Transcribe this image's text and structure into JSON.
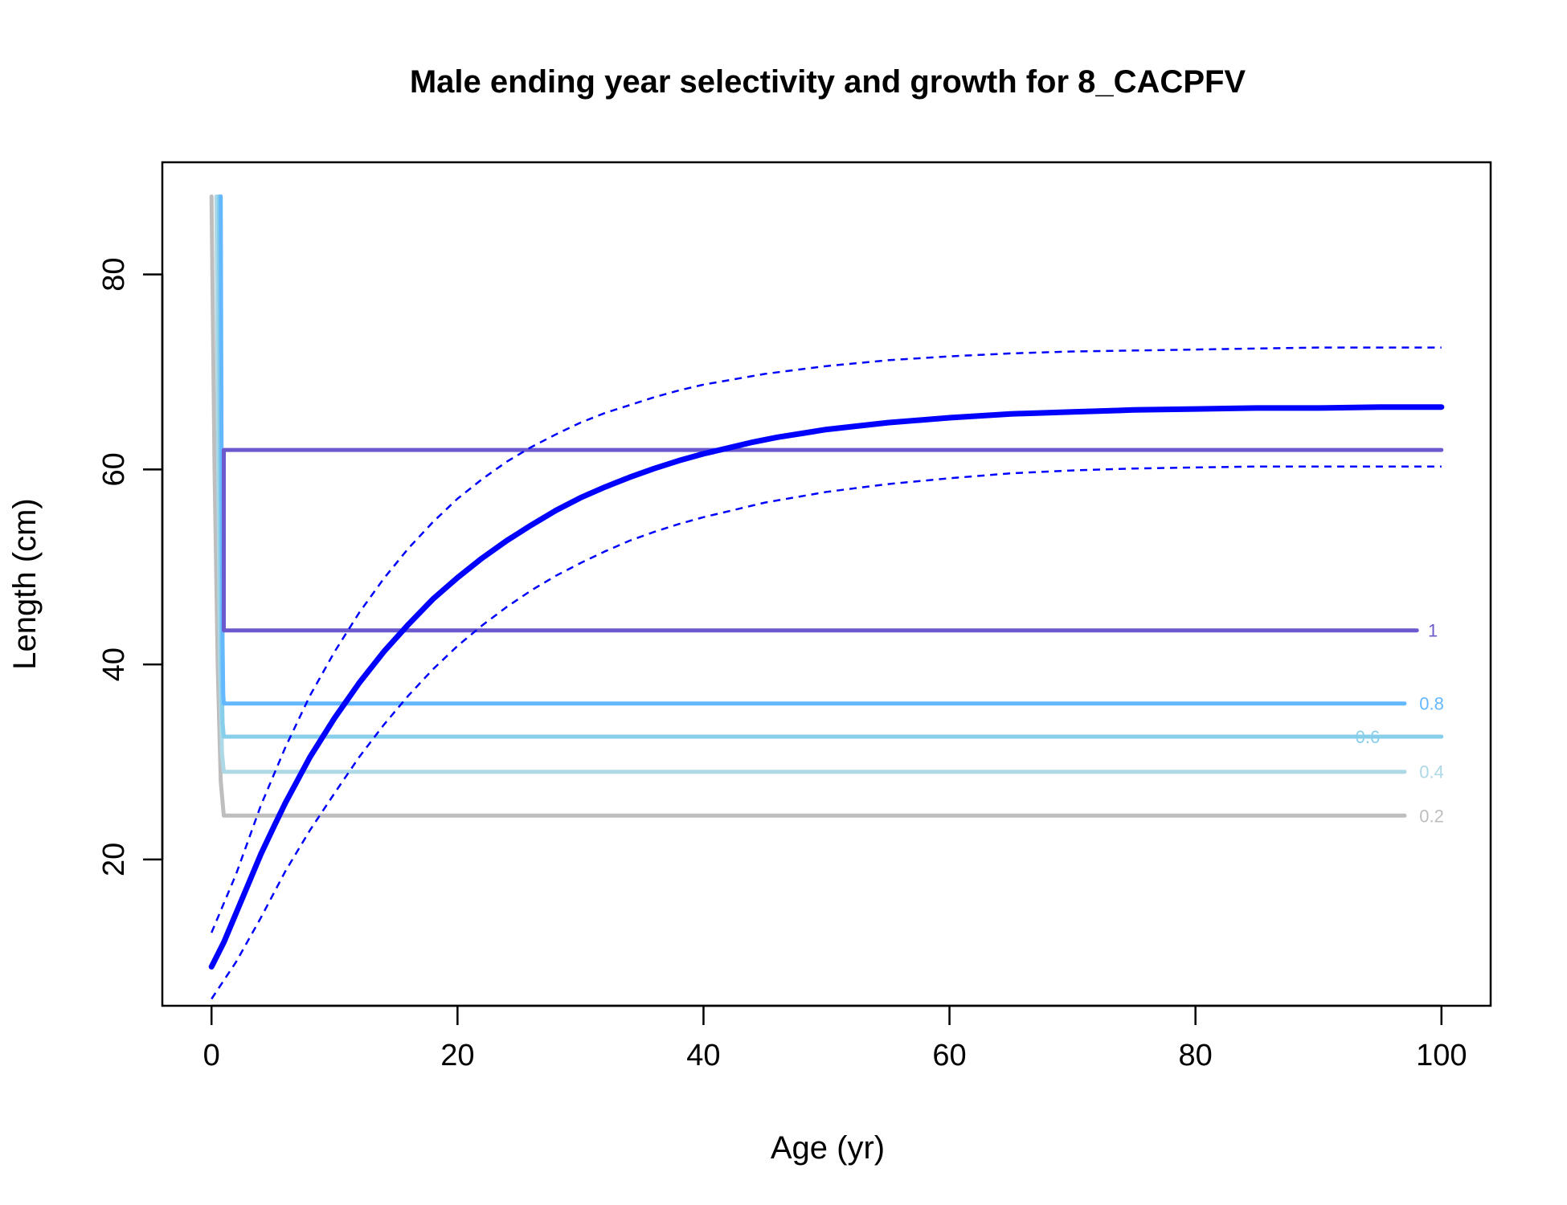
{
  "chart_data": {
    "type": "line",
    "title": "Male ending year selectivity and growth for 8_CACPFV",
    "xlabel": "Age (yr)",
    "ylabel": "Length (cm)",
    "xlim": [
      -4,
      104
    ],
    "ylim": [
      5,
      91.5
    ],
    "xticks": [
      0,
      20,
      40,
      60,
      80,
      100
    ],
    "yticks": [
      20,
      40,
      60,
      80
    ],
    "grid": false,
    "legend": "none",
    "growth": {
      "color": "#0000FF",
      "mean": {
        "x": [
          0,
          1,
          2,
          3,
          4,
          5,
          6,
          8,
          10,
          12,
          14,
          16,
          18,
          20,
          22,
          24,
          26,
          28,
          30,
          32,
          34,
          36,
          38,
          40,
          42,
          44,
          46,
          48,
          50,
          55,
          60,
          65,
          70,
          75,
          80,
          85,
          90,
          95,
          100
        ],
        "y": [
          9.0,
          11.5,
          14.5,
          17.5,
          20.5,
          23.2,
          25.8,
          30.5,
          34.5,
          38.1,
          41.3,
          44.1,
          46.7,
          48.9,
          50.9,
          52.7,
          54.3,
          55.8,
          57.1,
          58.2,
          59.2,
          60.1,
          60.9,
          61.6,
          62.2,
          62.8,
          63.3,
          63.7,
          64.1,
          64.8,
          65.3,
          65.7,
          65.9,
          66.1,
          66.2,
          66.3,
          66.3,
          66.4,
          66.4
        ]
      },
      "upper": {
        "x": [
          0,
          2,
          4,
          6,
          8,
          10,
          12,
          14,
          16,
          18,
          20,
          22,
          24,
          26,
          28,
          30,
          32,
          34,
          36,
          38,
          40,
          45,
          50,
          55,
          60,
          65,
          70,
          75,
          80,
          85,
          90,
          95,
          100
        ],
        "y": [
          12.5,
          18.5,
          25.5,
          31.5,
          36.8,
          41.3,
          45.3,
          48.8,
          51.9,
          54.6,
          57.0,
          59.0,
          60.8,
          62.3,
          63.6,
          64.8,
          65.8,
          66.6,
          67.4,
          68.1,
          68.7,
          69.8,
          70.6,
          71.2,
          71.6,
          71.9,
          72.1,
          72.2,
          72.3,
          72.4,
          72.5,
          72.5,
          72.5
        ]
      },
      "lower": {
        "x": [
          0,
          2,
          4,
          6,
          8,
          10,
          12,
          14,
          16,
          18,
          20,
          22,
          24,
          26,
          28,
          30,
          32,
          34,
          36,
          38,
          40,
          45,
          50,
          55,
          60,
          65,
          70,
          75,
          80,
          85,
          90,
          95,
          100
        ],
        "y": [
          5.7,
          9.5,
          14.0,
          18.8,
          23.0,
          26.8,
          30.5,
          33.8,
          36.8,
          39.5,
          41.9,
          44.0,
          45.9,
          47.6,
          49.1,
          50.4,
          51.6,
          52.7,
          53.6,
          54.4,
          55.1,
          56.6,
          57.7,
          58.5,
          59.1,
          59.6,
          59.9,
          60.1,
          60.2,
          60.3,
          60.3,
          60.3,
          60.3
        ]
      }
    },
    "contours": [
      {
        "label": "0.2",
        "color": "#BEBEBE",
        "x": [
          0,
          0.25,
          0.5,
          0.75,
          1,
          97
        ],
        "y": [
          88,
          60,
          40,
          28,
          24.5,
          24.5
        ]
      },
      {
        "label": "0.4",
        "color": "#ADD8E6",
        "x": [
          0.4,
          0.55,
          0.7,
          0.85,
          1,
          97
        ],
        "y": [
          88,
          60,
          40,
          31,
          29,
          29
        ]
      },
      {
        "label": "0.6",
        "color": "#87CEEB",
        "x": [
          0.6,
          0.7,
          0.8,
          0.9,
          1,
          100
        ],
        "y": [
          88,
          60,
          40,
          34,
          32.6,
          32.6
        ]
      },
      {
        "label": "0.8",
        "color": "#63B8FF",
        "x": [
          0.75,
          0.82,
          0.9,
          0.95,
          1,
          97
        ],
        "y": [
          88,
          60,
          42,
          37,
          36,
          36
        ]
      },
      {
        "label": "1",
        "color": "#6A5ACD",
        "x": [
          1,
          1,
          98,
          null,
          1,
          100
        ],
        "y": [
          62,
          43.5,
          43.5,
          null,
          62,
          62
        ]
      }
    ],
    "contour_label_positions": [
      {
        "label": "0.2",
        "x": 98.2,
        "y": 24.5
      },
      {
        "label": "0.4",
        "x": 98.2,
        "y": 29
      },
      {
        "label": "0.6",
        "x": 93.0,
        "y": 32.6
      },
      {
        "label": "0.8",
        "x": 98.2,
        "y": 36
      },
      {
        "label": "1",
        "x": 98.9,
        "y": 43.5
      }
    ]
  }
}
